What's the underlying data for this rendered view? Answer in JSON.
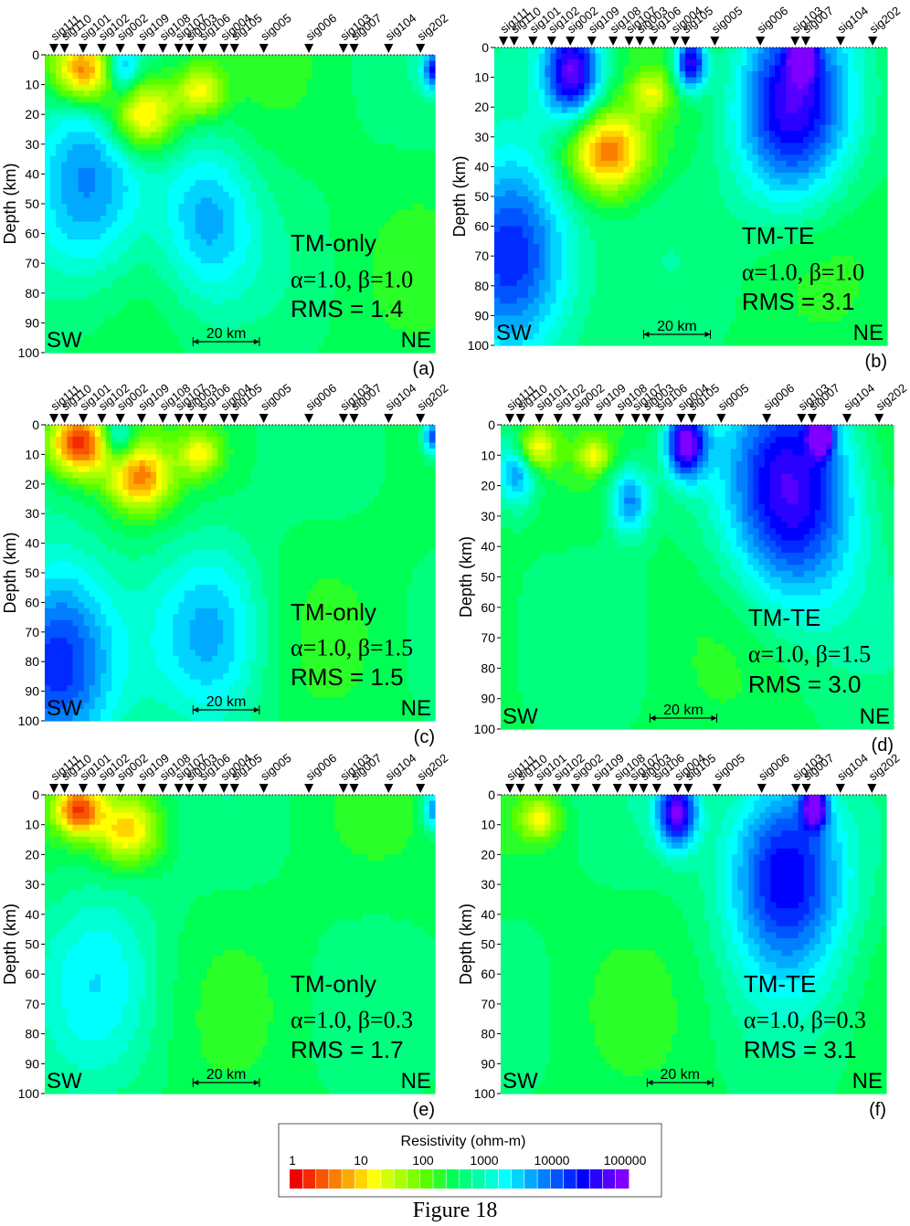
{
  "figure": {
    "caption": "Figure 18"
  },
  "stations": [
    "sig111",
    "sig110",
    "sig101",
    "sig102",
    "sig002",
    "sig109",
    "sig108",
    "sig107",
    "sig003",
    "sig106",
    "sig004",
    "sig105",
    "sig005",
    "sig006",
    "sig103",
    "sig007",
    "sig104",
    "sig202"
  ],
  "station_pos": [
    0,
    4,
    11,
    18,
    25,
    33,
    41,
    47,
    51,
    56,
    64,
    68,
    79,
    96,
    109,
    113,
    126,
    138
  ],
  "axis": {
    "ylabel": "Depth (km)",
    "yticks": [
      0,
      10,
      20,
      30,
      40,
      50,
      60,
      70,
      80,
      90,
      100
    ],
    "scale_bar": "20 km",
    "left_label": "SW",
    "right_label": "NE"
  },
  "colorbar": {
    "title": "Resistivity (ohm-m)",
    "tick_labels": [
      "1",
      "10",
      "100",
      "1000",
      "10000",
      "100000"
    ],
    "colors": [
      "#ee0000",
      "#f52a00",
      "#f85500",
      "#fa7f00",
      "#fcaa00",
      "#ffd400",
      "#ffff00",
      "#d4ff00",
      "#aaff00",
      "#7fff00",
      "#55ff00",
      "#2aff2a",
      "#00ff55",
      "#00ff7f",
      "#00ffaa",
      "#00ffd4",
      "#00ffff",
      "#00d4ff",
      "#00aaff",
      "#007fff",
      "#0055ff",
      "#002aff",
      "#0000ff",
      "#2a00ff",
      "#5500ff",
      "#7f00ff"
    ]
  },
  "chart_data": [
    {
      "type": "heatmap",
      "panel_label": "(a)",
      "mode": "TM-only",
      "params": "α=1.0, β=1.0",
      "rms_label": "RMS = 1.4",
      "ylim": [
        100,
        0
      ],
      "conductors": [
        {
          "x": 14,
          "z": 5,
          "log": 0.2,
          "r": 8
        },
        {
          "x": 35,
          "z": 20,
          "log": 0.6,
          "r": 9
        },
        {
          "x": 56,
          "z": 12,
          "log": 1.2,
          "r": 6
        }
      ],
      "resistors": [
        {
          "x": 16,
          "z": 45,
          "log": 3.8,
          "r": 15
        },
        {
          "x": 28,
          "z": 5,
          "log": 3.6,
          "r": 4
        },
        {
          "x": 140,
          "z": 5,
          "log": 4.2,
          "r": 3
        },
        {
          "x": 58,
          "z": 55,
          "log": 3.5,
          "r": 12
        }
      ]
    },
    {
      "type": "heatmap",
      "panel_label": "(b)",
      "mode": "TM-TE",
      "params": "α=1.0, β=1.0",
      "rms_label": "RMS = 3.1",
      "ylim": [
        100,
        0
      ],
      "conductors": [
        {
          "x": 40,
          "z": 35,
          "log": 0.5,
          "r": 10
        },
        {
          "x": 56,
          "z": 15,
          "log": 1.5,
          "r": 5
        }
      ],
      "resistors": [
        {
          "x": 28,
          "z": 8,
          "log": 4.8,
          "r": 7
        },
        {
          "x": 6,
          "z": 70,
          "log": 4.5,
          "r": 15
        },
        {
          "x": 70,
          "z": 5,
          "log": 4.8,
          "r": 4
        },
        {
          "x": 106,
          "z": 20,
          "log": 4.6,
          "r": 14
        },
        {
          "x": 110,
          "z": 3,
          "log": 4.9,
          "r": 3
        }
      ]
    },
    {
      "type": "heatmap",
      "panel_label": "(c)",
      "mode": "TM-only",
      "params": "α=1.0, β=1.5",
      "rms_label": "RMS = 1.5",
      "ylim": [
        100,
        0
      ],
      "conductors": [
        {
          "x": 12,
          "z": 6,
          "log": 0.1,
          "r": 8
        },
        {
          "x": 34,
          "z": 18,
          "log": 0.7,
          "r": 8
        },
        {
          "x": 56,
          "z": 10,
          "log": 1.3,
          "r": 5
        }
      ],
      "resistors": [
        {
          "x": 4,
          "z": 80,
          "log": 4.4,
          "r": 15
        },
        {
          "x": 26,
          "z": 4,
          "log": 3.6,
          "r": 4
        },
        {
          "x": 140,
          "z": 4,
          "log": 4.2,
          "r": 3
        },
        {
          "x": 60,
          "z": 70,
          "log": 3.4,
          "r": 14
        }
      ]
    },
    {
      "type": "heatmap",
      "panel_label": "(d)",
      "mode": "TM-TE",
      "params": "α=1.0, β=1.5",
      "rms_label": "RMS = 3.0",
      "ylim": [
        100,
        0
      ],
      "conductors": [
        {
          "x": 12,
          "z": 8,
          "log": 1.0,
          "r": 5
        },
        {
          "x": 33,
          "z": 10,
          "log": 1.4,
          "r": 4
        }
      ],
      "resistors": [
        {
          "x": 66,
          "z": 6,
          "log": 4.9,
          "r": 5
        },
        {
          "x": 104,
          "z": 22,
          "log": 4.7,
          "r": 16
        },
        {
          "x": 114,
          "z": 3,
          "log": 4.8,
          "r": 3
        },
        {
          "x": 6,
          "z": 15,
          "log": 3.8,
          "r": 5
        },
        {
          "x": 46,
          "z": 25,
          "log": 3.8,
          "r": 5
        }
      ]
    },
    {
      "type": "heatmap",
      "panel_label": "(e)",
      "mode": "TM-only",
      "params": "α=1.0, β=0.3",
      "rms_label": "RMS = 1.7",
      "ylim": [
        100,
        0
      ],
      "conductors": [
        {
          "x": 12,
          "z": 5,
          "log": 0.5,
          "r": 6
        },
        {
          "x": 30,
          "z": 12,
          "log": 1.0,
          "r": 8
        }
      ],
      "resistors": [
        {
          "x": 140,
          "z": 5,
          "log": 3.8,
          "r": 3
        },
        {
          "x": 20,
          "z": 60,
          "log": 3.1,
          "r": 16
        }
      ]
    },
    {
      "type": "heatmap",
      "panel_label": "(f)",
      "mode": "TM-TE",
      "params": "α=1.0, β=0.3",
      "rms_label": "RMS = 3.1",
      "ylim": [
        100,
        0
      ],
      "conductors": [
        {
          "x": 14,
          "z": 8,
          "log": 1.3,
          "r": 5
        }
      ],
      "resistors": [
        {
          "x": 64,
          "z": 6,
          "log": 4.8,
          "r": 5
        },
        {
          "x": 104,
          "z": 25,
          "log": 4.6,
          "r": 15
        },
        {
          "x": 114,
          "z": 4,
          "log": 4.8,
          "r": 3
        }
      ]
    }
  ]
}
